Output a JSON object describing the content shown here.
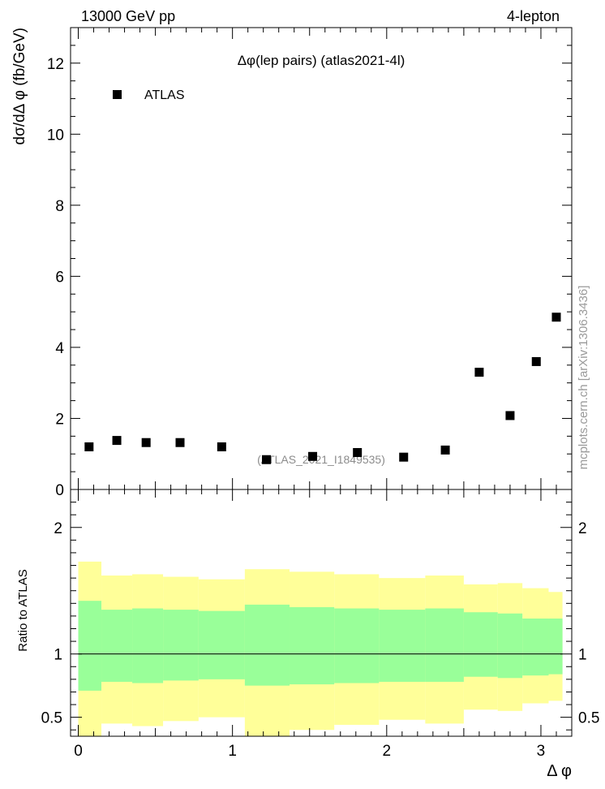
{
  "header": {
    "left": "13000 GeV pp",
    "right": "4-lepton"
  },
  "side_label": "mcplots.cern.ch [arXiv:1306.3436]",
  "chart_data": [
    {
      "type": "scatter",
      "title": "Δφ(lep pairs) (atlas2021-4l)",
      "ylabel": "dσ/dΔ φ (fb/GeV)",
      "xlabel": "",
      "xlim": [
        -0.05,
        3.2
      ],
      "ylim": [
        0,
        13
      ],
      "yticks": [
        0,
        2,
        4,
        6,
        8,
        10,
        12
      ],
      "ytick_labels": [
        "0",
        "2",
        "4",
        "6",
        "8",
        "10",
        "12"
      ],
      "watermark": "(ATLAS_2021_I1849535)",
      "legend": {
        "placement": "top-left",
        "entries": [
          "ATLAS"
        ]
      },
      "series": [
        {
          "name": "ATLAS",
          "color": "#000000",
          "x": [
            0.07,
            0.25,
            0.44,
            0.66,
            0.93,
            1.22,
            1.52,
            1.81,
            2.11,
            2.38,
            2.6,
            2.8,
            2.97,
            3.1
          ],
          "y": [
            1.2,
            1.38,
            1.32,
            1.32,
            1.2,
            0.84,
            0.93,
            1.04,
            0.91,
            1.11,
            3.3,
            2.08,
            3.6,
            4.85
          ]
        }
      ]
    },
    {
      "type": "area",
      "title": "",
      "ylabel": "Ratio to ATLAS",
      "xlabel": "Δ φ",
      "xlim": [
        -0.05,
        3.2
      ],
      "ylim": [
        0.35,
        2.3
      ],
      "xticks": [
        0,
        1,
        2,
        3
      ],
      "xtick_labels": [
        "0",
        "1",
        "2",
        "3"
      ],
      "yticks": [
        0.5,
        1,
        2
      ],
      "ytick_labels": [
        "0.5",
        "1",
        "2"
      ],
      "reference_line": 1,
      "bins": [
        0,
        0.15,
        0.35,
        0.55,
        0.78,
        1.08,
        1.37,
        1.66,
        1.95,
        2.25,
        2.5,
        2.72,
        2.88,
        3.05,
        3.14
      ],
      "series": [
        {
          "name": "yellow band",
          "color": "#ffff99",
          "lower": [
            0.2,
            0.45,
            0.43,
            0.47,
            0.5,
            0.3,
            0.4,
            0.44,
            0.48,
            0.45,
            0.56,
            0.55,
            0.61,
            0.63
          ],
          "upper": [
            1.73,
            1.62,
            1.63,
            1.61,
            1.59,
            1.67,
            1.65,
            1.63,
            1.6,
            1.62,
            1.55,
            1.56,
            1.52,
            1.49
          ]
        },
        {
          "name": "green band",
          "color": "#99ff99",
          "lower": [
            0.71,
            0.78,
            0.77,
            0.79,
            0.8,
            0.75,
            0.76,
            0.77,
            0.78,
            0.78,
            0.82,
            0.81,
            0.83,
            0.84
          ],
          "upper": [
            1.42,
            1.35,
            1.36,
            1.35,
            1.34,
            1.39,
            1.37,
            1.36,
            1.35,
            1.36,
            1.33,
            1.32,
            1.28,
            1.28
          ]
        }
      ]
    }
  ]
}
